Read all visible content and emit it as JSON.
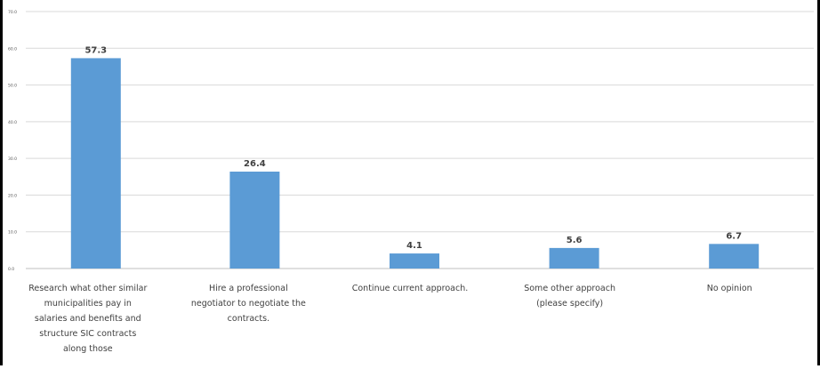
{
  "chart_data": {
    "type": "bar",
    "title": "",
    "xlabel": "",
    "ylabel": "",
    "ylim": [
      0,
      70
    ],
    "yticks": [
      "0.0",
      "10.0",
      "20.0",
      "30.0",
      "40.0",
      "50.0",
      "60.0",
      "70.0"
    ],
    "grid": true,
    "legend": "none",
    "bar_color": "#5b9bd5",
    "categories": [
      [
        "Research what other similar",
        "municipalities pay in",
        "salaries and benefits and",
        "structure SIC contracts",
        "along those"
      ],
      [
        "Hire a professional",
        "negotiator to negotiate the",
        "contracts."
      ],
      [
        "Continue current approach."
      ],
      [
        "Some other approach",
        "(please specify)"
      ],
      [
        "No opinion"
      ]
    ],
    "values": [
      57.3,
      26.4,
      4.1,
      5.6,
      6.7
    ],
    "data_labels": [
      "57.3",
      "26.4",
      "4.1",
      "5.6",
      "6.7"
    ]
  }
}
